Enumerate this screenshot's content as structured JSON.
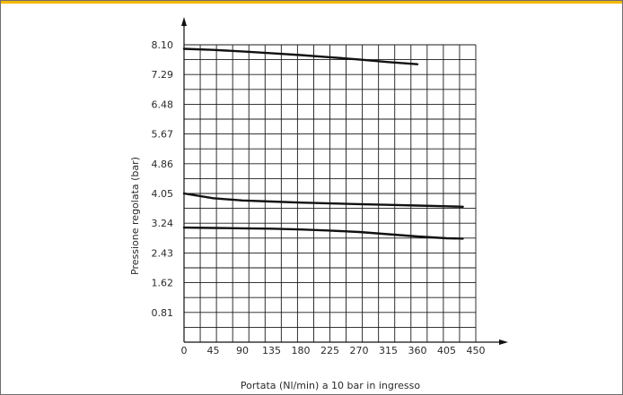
{
  "colors": {
    "top_bar": "#f5b800",
    "border": "#6f6f6f",
    "ink": "#111111"
  },
  "chart_data": {
    "type": "line",
    "xlabel": "Portata (Nl/min) a 10 bar in ingresso",
    "ylabel": "Pressione regolata (bar)",
    "x_ticks": [
      "0",
      "45",
      "90",
      "135",
      "180",
      "225",
      "270",
      "315",
      "360",
      "405",
      "450"
    ],
    "y_ticks": [
      "0.81",
      "1.62",
      "2.43",
      "3.24",
      "4.05",
      "4.86",
      "5.67",
      "6.48",
      "7.29",
      "8.10"
    ],
    "xlim": [
      0,
      450
    ],
    "ylim": [
      0,
      8.1
    ],
    "grid": true,
    "series": [
      {
        "x": [
          0,
          45,
          90,
          135,
          180,
          225,
          270,
          315,
          360
        ],
        "values": [
          7.99,
          7.96,
          7.92,
          7.87,
          7.82,
          7.76,
          7.7,
          7.63,
          7.57
        ]
      },
      {
        "x": [
          0,
          45,
          90,
          135,
          180,
          225,
          270,
          315,
          360,
          405,
          430
        ],
        "values": [
          4.05,
          3.92,
          3.86,
          3.83,
          3.8,
          3.78,
          3.76,
          3.74,
          3.72,
          3.7,
          3.69
        ]
      },
      {
        "x": [
          0,
          45,
          90,
          135,
          180,
          225,
          270,
          315,
          360,
          405,
          430
        ],
        "values": [
          3.12,
          3.11,
          3.1,
          3.09,
          3.07,
          3.04,
          3.0,
          2.94,
          2.88,
          2.83,
          2.82
        ]
      }
    ]
  }
}
